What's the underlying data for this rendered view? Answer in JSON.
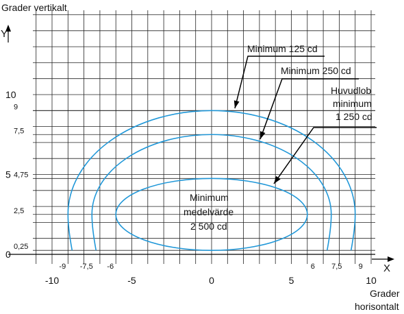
{
  "chart_data": {
    "type": "line",
    "title": "",
    "ylabel": "Grader vertikalt",
    "ylabel_symbol": "Y",
    "xlabel": "Grader horisontalt",
    "xlabel_symbol": "X",
    "xlim": [
      -10.5,
      10.5
    ],
    "ylim": [
      0,
      15
    ],
    "x_major_ticks": [
      "-10",
      "-5",
      "0",
      "5",
      "10"
    ],
    "x_minor_ticks": [
      "-9",
      "-7,5",
      "-6",
      "6",
      "7,5",
      "9"
    ],
    "y_major_ticks": [
      "0",
      "5",
      "10"
    ],
    "y_minor_ticks": [
      "0,25",
      "2,5",
      "4,75",
      "7,5",
      "9"
    ],
    "grid": true,
    "series": [
      {
        "name": "Minimum 125 cd",
        "center_y": 2.5,
        "half_width": 9,
        "top": 9,
        "bottom": 0.25,
        "shape": "u"
      },
      {
        "name": "Minimum 250 cd",
        "center_y": 2.5,
        "half_width": 7.5,
        "top": 7.5,
        "bottom": 0.25,
        "shape": "u"
      },
      {
        "name": "Huvudlob minimum 1 250 cd",
        "center_y": 2.5,
        "half_width": 6,
        "top": 4.75,
        "bottom": 0.25,
        "shape": "ellipse"
      }
    ],
    "annotations": {
      "label_125": "Minimum 125 cd",
      "label_250": "Minimum 250 cd",
      "label_1250": [
        "Huvudlob",
        "minimum",
        "1 250 cd"
      ],
      "label_2500": [
        "Minimum",
        "medelvärde",
        "2 500 cd"
      ]
    },
    "colors": {
      "isolines": "#1f97d8",
      "grid": "#222222"
    }
  }
}
